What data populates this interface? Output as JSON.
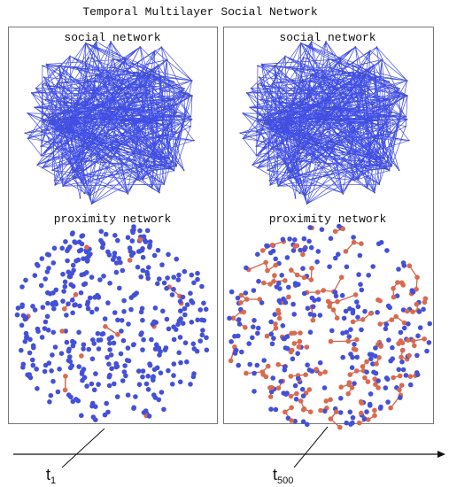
{
  "title": "Temporal Multilayer Social Network",
  "panels": [
    {
      "social_label": "social network",
      "proximity_label": "proximity network"
    },
    {
      "social_label": "social network",
      "proximity_label": "proximity network"
    }
  ],
  "timeline": [
    {
      "label": "t",
      "subscript": "1"
    },
    {
      "label": "t",
      "subscript": "500"
    }
  ]
}
